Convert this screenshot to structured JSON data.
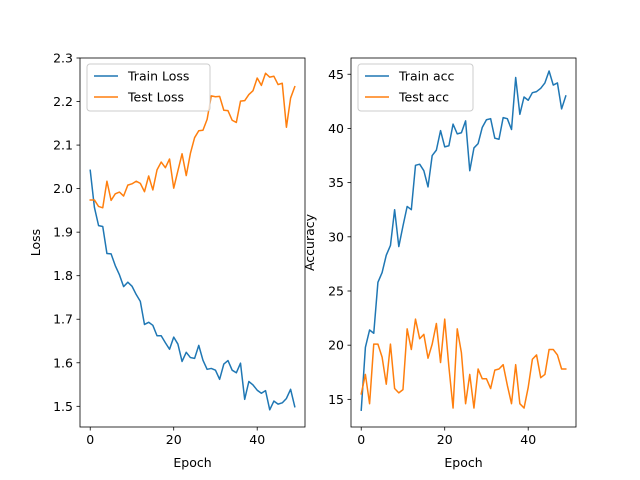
{
  "chart_data": [
    {
      "type": "line",
      "xlabel": "Epoch",
      "ylabel": "Loss",
      "xlim": [
        -2.45,
        51.45
      ],
      "ylim": [
        1.4525,
        2.3
      ],
      "xticks": [
        0,
        20,
        40
      ],
      "yticks": [
        1.5,
        1.6,
        1.7,
        1.8,
        1.9,
        2.0,
        2.1,
        2.2,
        2.3
      ],
      "ytick_labels": [
        "1.5",
        "1.6",
        "1.7",
        "1.8",
        "1.9",
        "2.0",
        "2.1",
        "2.2",
        "2.3"
      ],
      "legend_position": "upper-left",
      "x": [
        0,
        1,
        2,
        3,
        4,
        5,
        6,
        7,
        8,
        9,
        10,
        11,
        12,
        13,
        14,
        15,
        16,
        17,
        18,
        19,
        20,
        21,
        22,
        23,
        24,
        25,
        26,
        27,
        28,
        29,
        30,
        31,
        32,
        33,
        34,
        35,
        36,
        37,
        38,
        39,
        40,
        41,
        42,
        43,
        44,
        45,
        46,
        47,
        48,
        49
      ],
      "series": [
        {
          "name": "Train Loss",
          "color": "#1f77b4",
          "values": [
            2.042,
            1.957,
            1.915,
            1.913,
            1.851,
            1.85,
            1.823,
            1.802,
            1.775,
            1.785,
            1.776,
            1.757,
            1.741,
            1.688,
            1.693,
            1.686,
            1.662,
            1.662,
            1.646,
            1.631,
            1.659,
            1.643,
            1.603,
            1.624,
            1.612,
            1.61,
            1.64,
            1.606,
            1.585,
            1.587,
            1.583,
            1.562,
            1.597,
            1.605,
            1.583,
            1.577,
            1.599,
            1.516,
            1.557,
            1.549,
            1.537,
            1.53,
            1.536,
            1.492,
            1.512,
            1.505,
            1.508,
            1.518,
            1.539,
            1.499
          ]
        },
        {
          "name": "Test Loss",
          "color": "#ff7f0e",
          "values": [
            1.974,
            1.974,
            1.959,
            1.956,
            2.017,
            1.973,
            1.988,
            1.992,
            1.983,
            2.008,
            2.011,
            2.017,
            2.012,
            1.993,
            2.029,
            1.997,
            2.043,
            2.061,
            2.048,
            2.068,
            2.001,
            2.041,
            2.08,
            2.03,
            2.081,
            2.117,
            2.133,
            2.134,
            2.159,
            2.213,
            2.211,
            2.212,
            2.18,
            2.179,
            2.157,
            2.152,
            2.201,
            2.202,
            2.216,
            2.225,
            2.254,
            2.237,
            2.265,
            2.256,
            2.258,
            2.239,
            2.242,
            2.141,
            2.208,
            2.234
          ]
        }
      ]
    },
    {
      "type": "line",
      "xlabel": "Epoch",
      "ylabel": "Accuracy",
      "xlim": [
        -2.45,
        51.45
      ],
      "ylim": [
        12.45,
        46.5
      ],
      "xticks": [
        0,
        20,
        40
      ],
      "yticks": [
        15,
        20,
        25,
        30,
        35,
        40,
        45
      ],
      "ytick_labels": [
        "15",
        "20",
        "25",
        "30",
        "35",
        "40",
        "45"
      ],
      "legend_position": "upper-left",
      "x": [
        0,
        1,
        2,
        3,
        4,
        5,
        6,
        7,
        8,
        9,
        10,
        11,
        12,
        13,
        14,
        15,
        16,
        17,
        18,
        19,
        20,
        21,
        22,
        23,
        24,
        25,
        26,
        27,
        28,
        29,
        30,
        31,
        32,
        33,
        34,
        35,
        36,
        37,
        38,
        39,
        40,
        41,
        42,
        43,
        44,
        45,
        46,
        47,
        48,
        49
      ],
      "series": [
        {
          "name": "Train acc",
          "color": "#1f77b4",
          "values": [
            14.0,
            19.8,
            21.4,
            21.1,
            25.8,
            26.7,
            28.3,
            29.2,
            32.5,
            29.1,
            31.0,
            32.8,
            32.5,
            36.6,
            36.7,
            36.1,
            34.6,
            37.5,
            38.0,
            39.8,
            38.3,
            38.4,
            40.4,
            39.5,
            39.6,
            40.7,
            36.1,
            38.2,
            38.6,
            40.1,
            40.8,
            40.9,
            39.1,
            39.0,
            41.0,
            40.9,
            39.9,
            44.7,
            41.3,
            42.9,
            42.6,
            43.3,
            43.4,
            43.7,
            44.2,
            45.3,
            44.0,
            44.2,
            41.8,
            43.0
          ]
        },
        {
          "name": "Test acc",
          "color": "#ff7f0e",
          "values": [
            15.5,
            17.3,
            14.6,
            20.1,
            20.1,
            18.9,
            16.4,
            20.1,
            16.0,
            15.6,
            15.9,
            21.5,
            19.6,
            22.4,
            20.6,
            21.0,
            18.8,
            20.1,
            22.0,
            18.4,
            22.4,
            18.0,
            14.2,
            21.5,
            19.3,
            14.6,
            17.3,
            14.2,
            17.8,
            16.9,
            16.9,
            16.0,
            17.7,
            17.8,
            18.2,
            16.3,
            14.6,
            18.2,
            14.6,
            14.2,
            16.1,
            18.7,
            19.1,
            17.0,
            17.3,
            19.6,
            19.6,
            19.1,
            17.8,
            17.8
          ]
        }
      ]
    }
  ]
}
